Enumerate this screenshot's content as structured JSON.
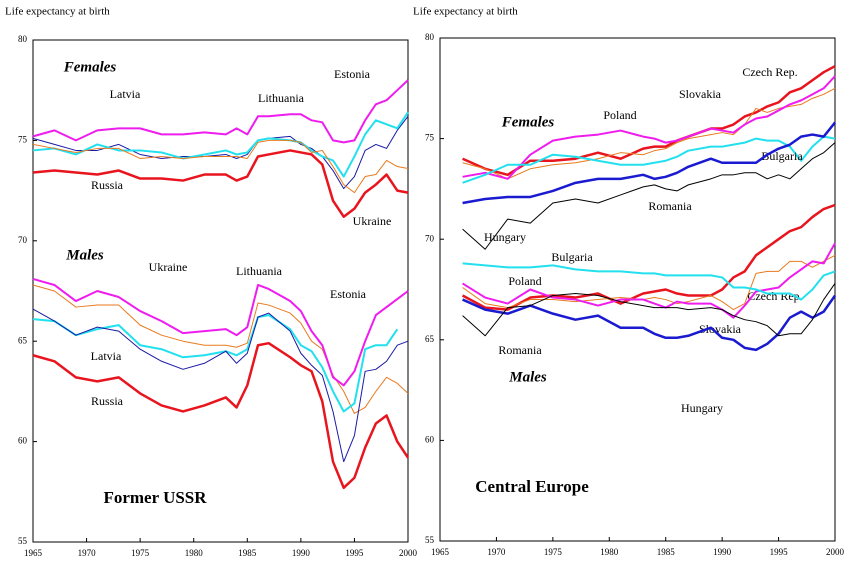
{
  "chart_data": [
    {
      "type": "line",
      "axis_label": "Life expectancy at birth",
      "title": "Former USSR",
      "x": [
        1965,
        1967,
        1969,
        1971,
        1973,
        1975,
        1977,
        1979,
        1981,
        1983,
        1984,
        1985,
        1986,
        1987,
        1989,
        1990,
        1991,
        1992,
        1993,
        1994,
        1995,
        1996,
        1997,
        1998,
        1999,
        2000
      ],
      "xlim": [
        1965,
        2000
      ],
      "xticks": [
        1965,
        1970,
        1975,
        1980,
        1985,
        1990,
        1995,
        2000
      ],
      "ylim": [
        55,
        80
      ],
      "yticks": [
        55,
        60,
        65,
        70,
        75,
        80
      ],
      "groups": [
        {
          "label": "Females",
          "series": [
            {
              "name": "Latvia",
              "color": "#1a1aa6",
              "line_width": 1,
              "values": [
                75.1,
                74.8,
                74.5,
                74.5,
                74.8,
                74.3,
                74.1,
                74.2,
                74.2,
                74.3,
                74.1,
                74.3,
                75.0,
                75.1,
                75.2,
                74.8,
                74.6,
                74.2,
                73.5,
                72.6,
                73.2,
                74.5,
                74.8,
                74.6,
                75.5,
                76.2
              ]
            },
            {
              "name": "Russia",
              "color": "#e8141e",
              "line_width": 2.5,
              "values": [
                73.4,
                73.5,
                73.4,
                73.3,
                73.5,
                73.1,
                73.1,
                73.0,
                73.3,
                73.3,
                73.0,
                73.2,
                74.2,
                74.3,
                74.5,
                74.4,
                74.3,
                73.8,
                72.0,
                71.2,
                71.6,
                72.4,
                72.8,
                73.3,
                72.5,
                72.4
              ]
            },
            {
              "name": "Lithuania",
              "color": "#ee1cee",
              "line_width": 2,
              "values": [
                75.2,
                75.5,
                75.0,
                75.5,
                75.6,
                75.6,
                75.3,
                75.3,
                75.4,
                75.3,
                75.6,
                75.3,
                76.2,
                76.2,
                76.3,
                76.3,
                76.0,
                75.9,
                75.0,
                74.9,
                75.0,
                76.0,
                76.8,
                77.0,
                77.5,
                78.0
              ]
            },
            {
              "name": "Estonia",
              "color": "#22e0ee",
              "line_width": 2,
              "values": [
                74.5,
                74.6,
                74.3,
                74.8,
                74.5,
                74.5,
                74.4,
                74.1,
                74.3,
                74.5,
                74.3,
                74.4,
                75.0,
                75.1,
                75.0,
                74.9,
                74.5,
                74.2,
                74.0,
                73.2,
                74.2,
                75.3,
                76.0,
                75.8,
                75.6,
                76.4
              ]
            },
            {
              "name": "Ukraine",
              "color": "#e87a1e",
              "line_width": 1,
              "values": [
                74.8,
                74.6,
                74.4,
                74.6,
                74.6,
                74.1,
                74.2,
                74.1,
                74.2,
                74.2,
                74.2,
                74.1,
                74.9,
                75.0,
                75.0,
                74.9,
                74.4,
                74.5,
                73.7,
                72.8,
                72.4,
                73.2,
                73.3,
                74.0,
                73.7,
                73.6
              ]
            }
          ]
        },
        {
          "label": "Males",
          "series": [
            {
              "name": "Ukraine",
              "color": "#e87a1e",
              "line_width": 1,
              "values": [
                67.8,
                67.5,
                66.7,
                66.8,
                66.8,
                65.8,
                65.3,
                65.0,
                64.8,
                64.8,
                64.7,
                64.9,
                66.9,
                66.8,
                66.4,
                65.9,
                65.0,
                64.6,
                63.3,
                62.5,
                61.4,
                61.7,
                62.5,
                63.2,
                62.9,
                62.4
              ]
            },
            {
              "name": "Lithuania",
              "color": "#ee1cee",
              "line_width": 2,
              "values": [
                68.1,
                67.8,
                67.0,
                67.5,
                67.2,
                66.5,
                66.0,
                65.4,
                65.5,
                65.6,
                65.3,
                65.7,
                67.8,
                67.6,
                67.0,
                66.5,
                65.5,
                64.8,
                63.2,
                62.8,
                63.5,
                65.0,
                66.3,
                66.7,
                67.1,
                67.5
              ]
            },
            {
              "name": "Estonia",
              "color": "#22e0ee",
              "line_width": 2,
              "values": [
                66.1,
                66.0,
                65.3,
                65.6,
                65.8,
                64.8,
                64.6,
                64.2,
                64.3,
                64.5,
                64.3,
                64.6,
                66.2,
                66.3,
                65.6,
                64.8,
                64.5,
                63.7,
                62.5,
                61.5,
                61.9,
                64.6,
                64.8,
                64.8,
                65.6,
                null
              ]
            },
            {
              "name": "Latvia",
              "color": "#1a1aa6",
              "line_width": 1,
              "values": [
                66.6,
                66.0,
                65.3,
                65.7,
                65.5,
                64.6,
                64.0,
                63.6,
                63.9,
                64.5,
                63.9,
                64.4,
                66.2,
                66.4,
                65.5,
                64.4,
                63.8,
                63.3,
                61.5,
                59.0,
                60.3,
                63.5,
                63.6,
                64.0,
                64.8,
                65.0
              ]
            },
            {
              "name": "Russia",
              "color": "#e8141e",
              "line_width": 2.5,
              "values": [
                64.3,
                64.0,
                63.2,
                63.0,
                63.2,
                62.4,
                61.8,
                61.5,
                61.8,
                62.2,
                61.7,
                62.8,
                64.8,
                64.9,
                64.2,
                63.8,
                63.5,
                62.0,
                59.0,
                57.7,
                58.2,
                59.7,
                60.9,
                61.3,
                60.0,
                59.2
              ]
            }
          ]
        }
      ]
    },
    {
      "type": "line",
      "axis_label": "Life expectancy at birth",
      "title": "Central Europe",
      "x": [
        1965,
        1967,
        1969,
        1971,
        1973,
        1975,
        1977,
        1979,
        1981,
        1983,
        1984,
        1985,
        1986,
        1987,
        1989,
        1990,
        1991,
        1992,
        1993,
        1994,
        1995,
        1996,
        1997,
        1998,
        1999,
        2000
      ],
      "xlim": [
        1965,
        2000
      ],
      "xticks": [
        1965,
        1970,
        1975,
        1980,
        1985,
        1990,
        1995,
        2000
      ],
      "ylim": [
        55,
        80
      ],
      "yticks": [
        55,
        60,
        65,
        70,
        75,
        80
      ],
      "groups": [
        {
          "label": "Females",
          "series": [
            {
              "name": "Czech Rep.",
              "color": "#e8141e",
              "line_width": 2.5,
              "values": [
                null,
                74.0,
                73.5,
                73.2,
                73.9,
                73.9,
                74.0,
                74.3,
                74.0,
                74.5,
                74.6,
                74.6,
                74.9,
                75.1,
                75.5,
                75.5,
                75.7,
                76.1,
                76.3,
                76.6,
                76.8,
                77.3,
                77.5,
                77.9,
                78.3,
                78.6
              ]
            },
            {
              "name": "Slovakia",
              "color": "#e87a1e",
              "line_width": 1,
              "values": [
                null,
                73.8,
                73.5,
                73.0,
                73.5,
                73.7,
                73.8,
                74.0,
                74.3,
                74.2,
                74.4,
                74.5,
                74.8,
                75.0,
                75.2,
                75.3,
                75.2,
                75.7,
                76.5,
                76.3,
                76.5,
                76.6,
                76.7,
                77.0,
                77.2,
                77.5
              ]
            },
            {
              "name": "Poland",
              "color": "#ee1cee",
              "line_width": 2,
              "values": [
                null,
                73.1,
                73.3,
                73.0,
                74.2,
                74.9,
                75.1,
                75.2,
                75.4,
                75.1,
                75.0,
                74.8,
                74.9,
                75.1,
                75.5,
                75.4,
                75.3,
                75.7,
                76.0,
                76.1,
                76.4,
                76.7,
                76.9,
                77.2,
                77.5,
                78.1
              ]
            },
            {
              "name": "Bulgaria",
              "color": "#22e0ee",
              "line_width": 2,
              "values": [
                null,
                72.8,
                73.2,
                73.7,
                73.7,
                74.2,
                74.1,
                73.9,
                73.7,
                73.7,
                73.8,
                73.9,
                74.1,
                74.4,
                74.6,
                74.6,
                74.7,
                74.8,
                75.0,
                74.9,
                74.9,
                74.6,
                73.9,
                74.6,
                75.1,
                75.0
              ]
            },
            {
              "name": "Hungary",
              "color": "#1a1ad0",
              "line_width": 2.5,
              "values": [
                null,
                71.8,
                72.0,
                72.1,
                72.1,
                72.4,
                72.8,
                73.0,
                73.0,
                73.2,
                73.0,
                73.1,
                73.3,
                73.6,
                74.0,
                73.8,
                73.8,
                73.8,
                73.8,
                74.2,
                74.5,
                74.7,
                75.1,
                75.2,
                75.1,
                75.8
              ]
            },
            {
              "name": "Romania",
              "color": "#000000",
              "line_width": 1,
              "values": [
                null,
                70.5,
                69.5,
                71.0,
                70.8,
                71.8,
                72.0,
                71.8,
                72.2,
                72.6,
                72.7,
                72.5,
                72.4,
                72.7,
                73.0,
                73.2,
                73.2,
                73.3,
                73.3,
                73.0,
                73.2,
                73.0,
                73.5,
                74.0,
                74.3,
                74.8
              ]
            }
          ]
        },
        {
          "label": "Males",
          "series": [
            {
              "name": "Czech Rep.",
              "color": "#e8141e",
              "line_width": 2.5,
              "values": [
                null,
                67.2,
                66.6,
                66.5,
                67.1,
                67.2,
                67.1,
                67.3,
                66.8,
                67.3,
                67.4,
                67.5,
                67.3,
                67.2,
                67.2,
                67.5,
                68.1,
                68.4,
                69.2,
                69.6,
                70.0,
                70.4,
                70.6,
                71.1,
                71.5,
                71.7
              ]
            },
            {
              "name": "Slovakia",
              "color": "#e87a1e",
              "line_width": 1,
              "values": [
                null,
                67.6,
                66.8,
                66.6,
                67.0,
                67.0,
                66.9,
                67.0,
                67.1,
                67.0,
                67.1,
                67.0,
                66.8,
                66.9,
                67.2,
                66.9,
                66.5,
                66.8,
                68.3,
                68.4,
                68.4,
                68.9,
                68.9,
                68.6,
                68.9,
                69.2
              ]
            },
            {
              "name": "Poland",
              "color": "#ee1cee",
              "line_width": 2,
              "values": [
                null,
                67.8,
                67.1,
                66.8,
                67.5,
                67.1,
                67.0,
                66.7,
                67.0,
                67.0,
                66.8,
                66.6,
                66.9,
                66.8,
                66.8,
                66.5,
                66.1,
                66.7,
                67.4,
                67.5,
                67.6,
                68.1,
                68.5,
                68.9,
                68.8,
                69.8
              ]
            },
            {
              "name": "Bulgaria",
              "color": "#22e0ee",
              "line_width": 2,
              "values": [
                null,
                68.8,
                68.7,
                68.6,
                68.6,
                68.7,
                68.5,
                68.4,
                68.4,
                68.3,
                68.3,
                68.2,
                68.2,
                68.2,
                68.2,
                68.1,
                67.6,
                67.6,
                67.5,
                67.3,
                67.3,
                67.3,
                67.0,
                67.5,
                68.2,
                68.4
              ]
            },
            {
              "name": "Hungary",
              "color": "#1a1ad0",
              "line_width": 2.5,
              "values": [
                null,
                67.0,
                66.5,
                66.3,
                66.7,
                66.3,
                66.0,
                66.2,
                65.6,
                65.6,
                65.3,
                65.1,
                65.1,
                65.2,
                65.6,
                65.1,
                65.0,
                64.6,
                64.5,
                64.8,
                65.3,
                66.1,
                66.4,
                66.1,
                66.4,
                67.2
              ]
            },
            {
              "name": "Romania",
              "color": "#000000",
              "line_width": 1,
              "values": [
                null,
                66.2,
                65.2,
                66.6,
                66.7,
                67.2,
                67.3,
                67.2,
                66.9,
                66.7,
                66.6,
                66.6,
                66.6,
                66.5,
                66.6,
                66.5,
                66.2,
                66.0,
                65.9,
                65.7,
                65.2,
                65.3,
                65.3,
                66.0,
                67.0,
                67.8
              ]
            }
          ]
        }
      ]
    }
  ]
}
